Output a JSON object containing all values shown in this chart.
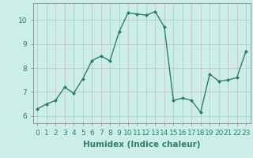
{
  "x": [
    0,
    1,
    2,
    3,
    4,
    5,
    6,
    7,
    8,
    9,
    10,
    11,
    12,
    13,
    14,
    15,
    16,
    17,
    18,
    19,
    20,
    21,
    22,
    23
  ],
  "y": [
    6.3,
    6.5,
    6.65,
    7.2,
    6.95,
    7.55,
    8.3,
    8.5,
    8.3,
    9.5,
    10.3,
    10.25,
    10.2,
    10.35,
    9.7,
    6.65,
    6.75,
    6.65,
    6.15,
    7.75,
    7.45,
    7.5,
    7.6,
    8.7
  ],
  "line_color": "#2e7d6e",
  "marker": "D",
  "marker_size": 2.0,
  "linewidth": 1.0,
  "xlabel": "Humidex (Indice chaleur)",
  "xlim": [
    -0.5,
    23.5
  ],
  "ylim": [
    5.7,
    10.7
  ],
  "yticks": [
    6,
    7,
    8,
    9,
    10
  ],
  "xticks": [
    0,
    1,
    2,
    3,
    4,
    5,
    6,
    7,
    8,
    9,
    10,
    11,
    12,
    13,
    14,
    15,
    16,
    17,
    18,
    19,
    20,
    21,
    22,
    23
  ],
  "xtick_labels": [
    "0",
    "1",
    "2",
    "3",
    "4",
    "5",
    "6",
    "7",
    "8",
    "9",
    "10",
    "11",
    "12",
    "13",
    "14",
    "15",
    "16",
    "17",
    "18",
    "19",
    "20",
    "21",
    "22",
    "23"
  ],
  "bg_color": "#cceee8",
  "grid_color": "#b8d8d4",
  "grid_major_color": "#c0c0c0",
  "xlabel_fontsize": 7.5,
  "tick_fontsize": 6.5,
  "tick_color": "#2e7d6e",
  "label_color": "#2e7d6e"
}
